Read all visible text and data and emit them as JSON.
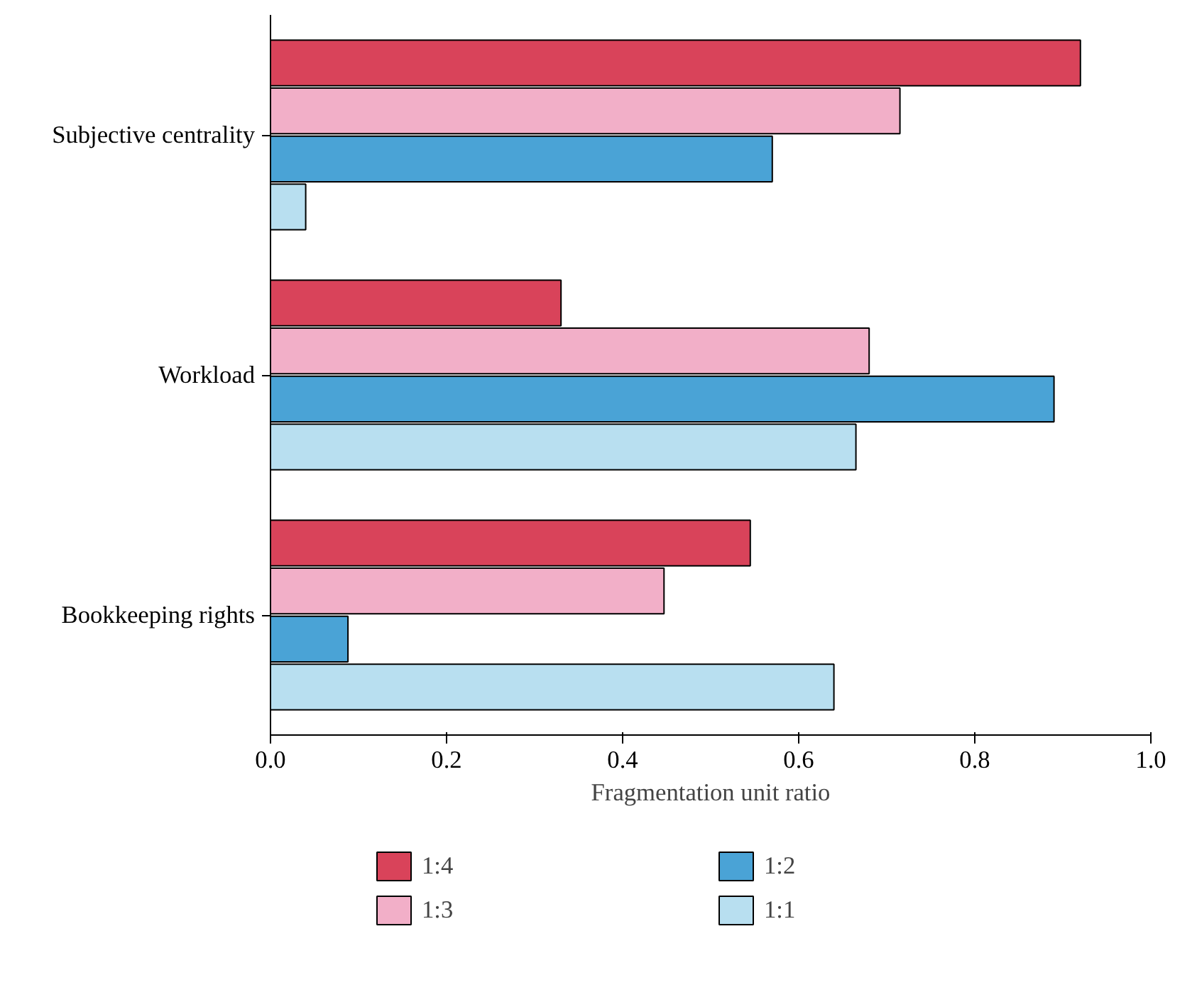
{
  "chart_data": {
    "type": "bar",
    "orientation": "horizontal",
    "xlabel": "Fragmentation unit ratio",
    "categories": [
      "Subjective centrality",
      "Workload",
      "Bookkeeping rights"
    ],
    "series": [
      {
        "name": "1:4",
        "color": "#d9435a",
        "values": [
          0.92,
          0.33,
          0.545
        ]
      },
      {
        "name": "1:3",
        "color": "#f2afc8",
        "values": [
          0.715,
          0.68,
          0.447
        ]
      },
      {
        "name": "1:2",
        "color": "#4aa3d6",
        "values": [
          0.57,
          0.89,
          0.088
        ]
      },
      {
        "name": "1:1",
        "color": "#b8dff0",
        "values": [
          0.04,
          0.665,
          0.64
        ]
      }
    ],
    "xlim": [
      0,
      1
    ],
    "xticks": [
      {
        "value": 0,
        "label": "0.0"
      },
      {
        "value": 0.2,
        "label": "0.2"
      },
      {
        "value": 0.4,
        "label": "0.4"
      },
      {
        "value": 0.6,
        "label": "0.6"
      },
      {
        "value": 0.8,
        "label": "0.8"
      },
      {
        "value": 1,
        "label": "1.0"
      }
    ],
    "grid": false,
    "legend": "bottom"
  }
}
